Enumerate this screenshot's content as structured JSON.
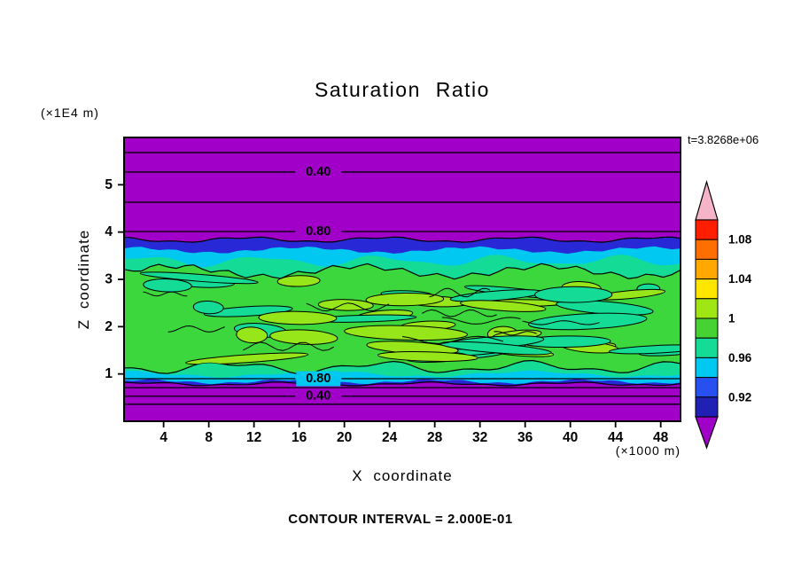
{
  "chart_data": {
    "type": "heatmap",
    "title": "Saturation Ratio",
    "xlabel": "X coordinate",
    "ylabel": "Z coordinate",
    "x_unit": "(×1000 m)",
    "y_unit": "(×1E4 m)",
    "time_annotation": "t=3.8268e+06",
    "contour_note": "CONTOUR INTERVAL = 2.000E-01",
    "contour_interval": 0.2,
    "x_range": [
      0.5,
      49.75
    ],
    "z_range": [
      0,
      6
    ],
    "x_ticks": [
      4,
      8,
      12,
      16,
      20,
      24,
      28,
      32,
      36,
      40,
      44,
      48
    ],
    "z_ticks": [
      1,
      2,
      3,
      4,
      5
    ],
    "field_background": "#A000C8",
    "bands": [
      {
        "name": "band-0.92-0.94",
        "color": "#2828D7",
        "z_top": 3.84,
        "z_bottom": 0.79
      },
      {
        "name": "band-0.94-0.96",
        "color": "#00C8F0",
        "z_top": 3.62,
        "z_bottom": 0.84
      },
      {
        "name": "band-0.96-0.98",
        "color": "#14DC96",
        "z_top": 3.39,
        "z_bottom": 1.0
      },
      {
        "name": "band-0.98-1.00",
        "color": "#3CD73C",
        "z_top": 3.17,
        "z_bottom": 1.14
      }
    ],
    "blob_colors": [
      "#96E619",
      "#14DC96"
    ],
    "label_x": 17.7,
    "contour_lines": [
      {
        "value": 0.2,
        "z": 5.68,
        "label": null
      },
      {
        "value": 0.4,
        "z": 5.27,
        "label": "0.40",
        "label_bg": "#A000C8"
      },
      {
        "value": 0.6,
        "z": 4.63,
        "label": null
      },
      {
        "value": 0.8,
        "z": 4.01,
        "label": "0.80",
        "label_bg": "#A000C8"
      },
      {
        "value": 0.8,
        "z": 0.9,
        "label": "0.80",
        "label_bg": "#00C8F0"
      },
      {
        "value": 0.6,
        "z": 0.71,
        "label": null
      },
      {
        "value": 0.4,
        "z": 0.53,
        "label": "0.40",
        "label_bg": "#A000C8"
      },
      {
        "value": 0.2,
        "z": 0.36,
        "label": null
      }
    ],
    "colorbar": {
      "min": 0.9,
      "max": 1.1,
      "labels": [
        "1.08",
        "1.04",
        "1",
        "0.96",
        "0.92"
      ],
      "label_values": [
        1.08,
        1.04,
        1.0,
        0.96,
        0.92
      ],
      "blocks_top_to_bottom": [
        "#FF1E00",
        "#FF6E00",
        "#FFA800",
        "#FFE600",
        "#A0E614",
        "#46D232",
        "#14DC96",
        "#00C8F0",
        "#2850F0",
        "#2020B4"
      ],
      "arrow_top_color": "#F5B4C8",
      "arrow_bottom_color": "#A000C8"
    }
  }
}
